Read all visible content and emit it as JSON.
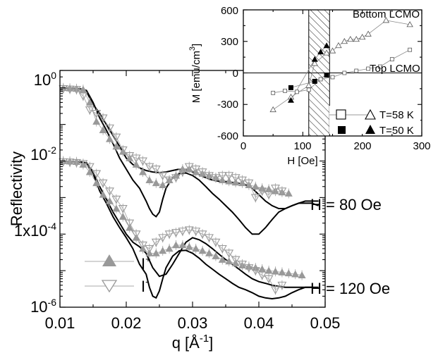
{
  "chart_data": [
    {
      "type": "scatter",
      "xlabel": "q [Å",
      "xlabel_sup": "-1",
      "xlabel_end": "]",
      "ylabel": "Reflectivity",
      "xlim": [
        0.01,
        0.05
      ],
      "ylim": [
        1e-06,
        3
      ],
      "yscale": "log",
      "x_ticks": [
        "0.01",
        "0.02",
        "0.03",
        "0.04",
        "0.05"
      ],
      "y_ticks": [
        {
          "value": 1e-06,
          "mant": "10",
          "exp": "-6"
        },
        {
          "value": 0.0001,
          "mant": "1x10",
          "exp": "-4"
        },
        {
          "value": 0.01,
          "mant": "10",
          "exp": "-2"
        },
        {
          "value": 1,
          "mant": "10",
          "exp": "0"
        }
      ],
      "legend_position": "bottom-left",
      "legend": [
        {
          "label": "I",
          "sup": "+",
          "marker": "triangle-up",
          "color": "#999999"
        },
        {
          "label": "I",
          "sup": "-",
          "marker": "triangle-down-open",
          "color": "#999999"
        }
      ],
      "annotations": [
        {
          "text": "H = 80 Oe",
          "x": 0.0445,
          "y": 0.0003
        },
        {
          "text": "H = 120 Oe",
          "x": 0.0445,
          "y": 2.8e-06
        }
      ],
      "series": [
        {
          "name": "I⁺",
          "panel": "H = 80 Oe",
          "marker": "triangle-up",
          "x": [
            0.0105,
            0.0115,
            0.0125,
            0.0135,
            0.0145,
            0.0155,
            0.0165,
            0.0175,
            0.0185,
            0.0195,
            0.0205,
            0.0215,
            0.0225,
            0.0235,
            0.0245,
            0.0255,
            0.0265,
            0.0275,
            0.0285,
            0.0295,
            0.0305,
            0.0315,
            0.0325,
            0.0335,
            0.0345,
            0.0355,
            0.0365,
            0.0375,
            0.0385,
            0.0395,
            0.0405,
            0.0415,
            0.0425,
            0.0435,
            0.0445
          ],
          "y": [
            1.0,
            0.98,
            0.95,
            0.9,
            0.4,
            0.12,
            0.07,
            0.04,
            0.025,
            0.018,
            0.012,
            0.008,
            0.005,
            0.003,
            0.0025,
            0.0022,
            0.003,
            0.004,
            0.006,
            0.006,
            0.005,
            0.0045,
            0.004,
            0.0035,
            0.003,
            0.0028,
            0.0026,
            0.0025,
            0.0022,
            0.002,
            0.0018,
            0.0017,
            0.0015,
            0.0014,
            0.0013
          ]
        },
        {
          "name": "I⁻",
          "panel": "H = 80 Oe",
          "marker": "triangle-down-open",
          "x": [
            0.0105,
            0.0115,
            0.0125,
            0.0135,
            0.0145,
            0.0155,
            0.0165,
            0.0175,
            0.0185,
            0.0195,
            0.0205,
            0.0215,
            0.0225,
            0.0235,
            0.0245,
            0.0255,
            0.0265,
            0.0275,
            0.0285,
            0.0295,
            0.0305,
            0.0315,
            0.0325,
            0.0335,
            0.0345,
            0.0355,
            0.0365,
            0.0375,
            0.0385,
            0.0395,
            0.0405,
            0.0415,
            0.0425,
            0.0435
          ],
          "y": [
            0.95,
            0.92,
            0.9,
            0.6,
            0.25,
            0.2,
            0.15,
            0.08,
            0.045,
            0.02,
            0.014,
            0.012,
            0.01,
            0.007,
            0.006,
            0.004,
            0.003,
            0.0035,
            0.005,
            0.007,
            0.006,
            0.005,
            0.004,
            0.0035,
            0.004,
            0.004,
            0.0035,
            0.003,
            0.0025,
            0.001,
            0.0015,
            0.0012,
            0.0018,
            0.0015
          ]
        },
        {
          "name": "I⁺",
          "panel": "H = 120 Oe",
          "marker": "triangle-up",
          "x": [
            0.0105,
            0.0115,
            0.0125,
            0.0135,
            0.0145,
            0.0155,
            0.0165,
            0.0175,
            0.0185,
            0.0195,
            0.0205,
            0.0215,
            0.0225,
            0.0235,
            0.0245,
            0.0255,
            0.0265,
            0.0275,
            0.0285,
            0.0295,
            0.0305,
            0.0315,
            0.0325,
            0.0335,
            0.0345,
            0.0355,
            0.0365,
            0.0375,
            0.0385,
            0.0395,
            0.0405,
            0.0415,
            0.0425,
            0.0435,
            0.0445,
            0.0455,
            0.0465
          ],
          "y": [
            0.01,
            0.0098,
            0.0095,
            0.008,
            0.005,
            0.0025,
            0.0012,
            0.0008,
            0.0005,
            0.0003,
            0.00015,
            8e-05,
            4e-05,
            3e-05,
            3e-05,
            3.5e-05,
            4e-05,
            5e-05,
            5e-05,
            4.5e-05,
            4e-05,
            3.5e-05,
            3e-05,
            2.5e-05,
            2e-05,
            1.8e-05,
            1.6e-05,
            1.4e-05,
            1.3e-05,
            1.2e-05,
            1.1e-05,
            1e-05,
            9.5e-06,
            9e-06,
            8.5e-06,
            8e-06,
            7.5e-06
          ]
        },
        {
          "name": "I⁻",
          "panel": "H = 120 Oe",
          "marker": "triangle-down-open",
          "x": [
            0.0105,
            0.0115,
            0.0125,
            0.0135,
            0.0145,
            0.0155,
            0.0165,
            0.0175,
            0.0185,
            0.0195,
            0.0205,
            0.0215,
            0.0225,
            0.0235,
            0.0245,
            0.0255,
            0.0265,
            0.0275,
            0.0285,
            0.0295,
            0.0305,
            0.0315,
            0.0325,
            0.0335,
            0.0345,
            0.0355,
            0.0365,
            0.0375,
            0.0385,
            0.0395,
            0.0405,
            0.0415,
            0.0425,
            0.0435
          ],
          "y": [
            0.0095,
            0.0093,
            0.009,
            0.0085,
            0.007,
            0.0045,
            0.0025,
            0.0015,
            0.0009,
            0.0005,
            0.0002,
            0.0001,
            5e-05,
            4e-05,
            6e-05,
            8e-05,
            0.0001,
            0.00011,
            0.00012,
            0.00013,
            0.00012,
            0.0001,
            8e-05,
            6e-05,
            4e-05,
            3e-05,
            2e-05,
            1.5e-05,
            1.2e-05,
            1e-05,
            7.5e-06,
            6e-06,
            3e-06,
            4e-06
          ]
        }
      ],
      "fits": [
        {
          "name": "fit 80 Oe A",
          "x": [
            0.0105,
            0.013,
            0.014,
            0.015,
            0.016,
            0.017,
            0.018,
            0.019,
            0.02,
            0.021,
            0.022,
            0.023,
            0.0235,
            0.024,
            0.0245,
            0.025,
            0.0255,
            0.026,
            0.027,
            0.028,
            0.029,
            0.03,
            0.031,
            0.032,
            0.033,
            0.034,
            0.035,
            0.036,
            0.037,
            0.038,
            0.039,
            0.04,
            0.041,
            0.042,
            0.043,
            0.044,
            0.045,
            0.046,
            0.047,
            0.048,
            0.049
          ],
          "y": [
            1.0,
            0.95,
            0.85,
            0.4,
            0.15,
            0.07,
            0.03,
            0.012,
            0.006,
            0.003,
            0.0018,
            0.0008,
            0.0005,
            0.00035,
            0.0003,
            0.0004,
            0.0009,
            0.0018,
            0.0035,
            0.0045,
            0.0047,
            0.004,
            0.003,
            0.002,
            0.0013,
            0.0009,
            0.0006,
            0.0004,
            0.00025,
            0.00015,
            0.0001,
            0.0001,
            0.00015,
            0.00025,
            0.0004,
            0.0005,
            0.0006,
            0.0007,
            0.0007,
            0.0007,
            0.0006
          ]
        },
        {
          "name": "fit 80 Oe B",
          "x": [
            0.0105,
            0.013,
            0.014,
            0.015,
            0.016,
            0.017,
            0.018,
            0.019,
            0.02,
            0.021,
            0.022,
            0.023,
            0.024,
            0.025,
            0.026,
            0.027,
            0.028,
            0.029,
            0.03,
            0.031,
            0.032,
            0.033,
            0.034,
            0.035,
            0.036,
            0.037,
            0.038,
            0.039,
            0.04,
            0.041,
            0.042,
            0.043,
            0.044,
            0.045,
            0.046,
            0.047,
            0.048,
            0.049
          ],
          "y": [
            0.98,
            0.93,
            0.8,
            0.35,
            0.2,
            0.1,
            0.05,
            0.025,
            0.012,
            0.008,
            0.0065,
            0.0055,
            0.005,
            0.0048,
            0.005,
            0.0055,
            0.006,
            0.0058,
            0.005,
            0.0042,
            0.0035,
            0.003,
            0.0028,
            0.0027,
            0.0026,
            0.0025,
            0.0022,
            0.0018,
            0.0012,
            0.0008,
            0.0006,
            0.0005,
            0.0005,
            0.0006,
            0.0007,
            0.0008,
            0.0008,
            0.0008
          ]
        },
        {
          "name": "fit 120 Oe A",
          "x": [
            0.0105,
            0.013,
            0.014,
            0.015,
            0.016,
            0.017,
            0.018,
            0.019,
            0.02,
            0.021,
            0.022,
            0.023,
            0.0235,
            0.024,
            0.0245,
            0.025,
            0.0255,
            0.026,
            0.027,
            0.028,
            0.029,
            0.03,
            0.031,
            0.032,
            0.033,
            0.034,
            0.035,
            0.036,
            0.037,
            0.038,
            0.039,
            0.04,
            0.041,
            0.042,
            0.043,
            0.044,
            0.045,
            0.046,
            0.047,
            0.048,
            0.049
          ],
          "y": [
            0.0098,
            0.0095,
            0.009,
            0.0045,
            0.0015,
            0.0007,
            0.0003,
            0.00015,
            8e-05,
            4e-05,
            1.5e-05,
            8e-06,
            3.5e-06,
            2e-06,
            1.8e-06,
            2.8e-06,
            6e-06,
            1.2e-05,
            2.5e-05,
            3.5e-05,
            3.6e-05,
            3e-05,
            2.2e-05,
            1.5e-05,
            1.1e-05,
            8e-06,
            6e-06,
            4.5e-06,
            3.5e-06,
            3e-06,
            2.5e-06,
            2e-06,
            1.8e-06,
            1.7e-06,
            1.8e-06,
            2e-06,
            2.5e-06,
            3e-06,
            3.5e-06,
            3.5e-06,
            3.3e-06
          ]
        },
        {
          "name": "fit 120 Oe B",
          "x": [
            0.0105,
            0.013,
            0.014,
            0.015,
            0.016,
            0.017,
            0.018,
            0.019,
            0.02,
            0.021,
            0.022,
            0.023,
            0.024,
            0.025,
            0.026,
            0.027,
            0.028,
            0.029,
            0.03,
            0.031,
            0.032,
            0.033,
            0.034,
            0.035,
            0.036,
            0.037,
            0.038,
            0.039,
            0.04,
            0.041,
            0.042,
            0.043,
            0.044,
            0.045,
            0.046,
            0.047,
            0.048,
            0.049
          ],
          "y": [
            0.0097,
            0.0094,
            0.0088,
            0.005,
            0.002,
            0.0009,
            0.0004,
            0.0002,
            0.0001,
            6e-05,
            4.5e-05,
            3e-05,
            1.2e-05,
            7e-06,
            8e-06,
            1.5e-05,
            3e-05,
            6e-05,
            8e-05,
            7e-05,
            5.5e-05,
            4e-05,
            2.8e-05,
            2e-05,
            1.5e-05,
            1.1e-05,
            8e-06,
            6e-06,
            5e-06,
            4.5e-06,
            4e-06,
            3.7e-06,
            3.5e-06,
            3.5e-06,
            3.5e-06,
            3.5e-06,
            3.5e-06,
            3.5e-06
          ]
        }
      ]
    },
    {
      "type": "line",
      "xlabel": "H [Oe]",
      "ylabel": "M [emu/cm",
      "ylabel_sup": "3",
      "ylabel_end": "]",
      "xlim": [
        0,
        300
      ],
      "ylim": [
        -600,
        600
      ],
      "x_ticks": [
        "0",
        "100",
        "200",
        "300"
      ],
      "y_ticks": [
        "-600",
        "-300",
        "0",
        "300",
        "600"
      ],
      "hatched_band": [
        110,
        145
      ],
      "labels": [
        {
          "text": "Bottom LCMO"
        },
        {
          "text": "Top LCMO"
        }
      ],
      "legend_position": "lower-right",
      "legend": [
        {
          "label": "T=58 K",
          "markers": [
            "square-open",
            "triangle-open"
          ]
        },
        {
          "label": "T=50 K",
          "markers": [
            "square-filled",
            "triangle-filled"
          ]
        }
      ],
      "series": [
        {
          "name": "Bottom LCMO T=58 K",
          "marker": "triangle-open",
          "x": [
            50,
            80,
            110,
            120,
            140,
            150,
            160,
            170,
            180,
            190,
            200,
            210,
            240,
            280
          ],
          "y": [
            -350,
            -230,
            -120,
            90,
            190,
            210,
            260,
            300,
            320,
            320,
            340,
            370,
            500,
            460
          ]
        },
        {
          "name": "Top LCMO T=58 K",
          "marker": "square-open",
          "x": [
            50,
            70,
            90,
            110,
            130,
            150,
            170,
            190,
            210,
            230,
            250,
            280
          ],
          "y": [
            -190,
            -170,
            -180,
            -160,
            -60,
            -40,
            0,
            20,
            40,
            60,
            130,
            220
          ]
        },
        {
          "name": "Bottom LCMO T=50 K",
          "marker": "triangle-filled",
          "x": [
            80,
            120,
            130,
            140
          ],
          "y": [
            -260,
            130,
            200,
            260
          ]
        },
        {
          "name": "Top LCMO T=50 K",
          "marker": "square-filled",
          "x": [
            80,
            120,
            140
          ],
          "y": [
            -140,
            -80,
            -20
          ]
        }
      ]
    }
  ]
}
